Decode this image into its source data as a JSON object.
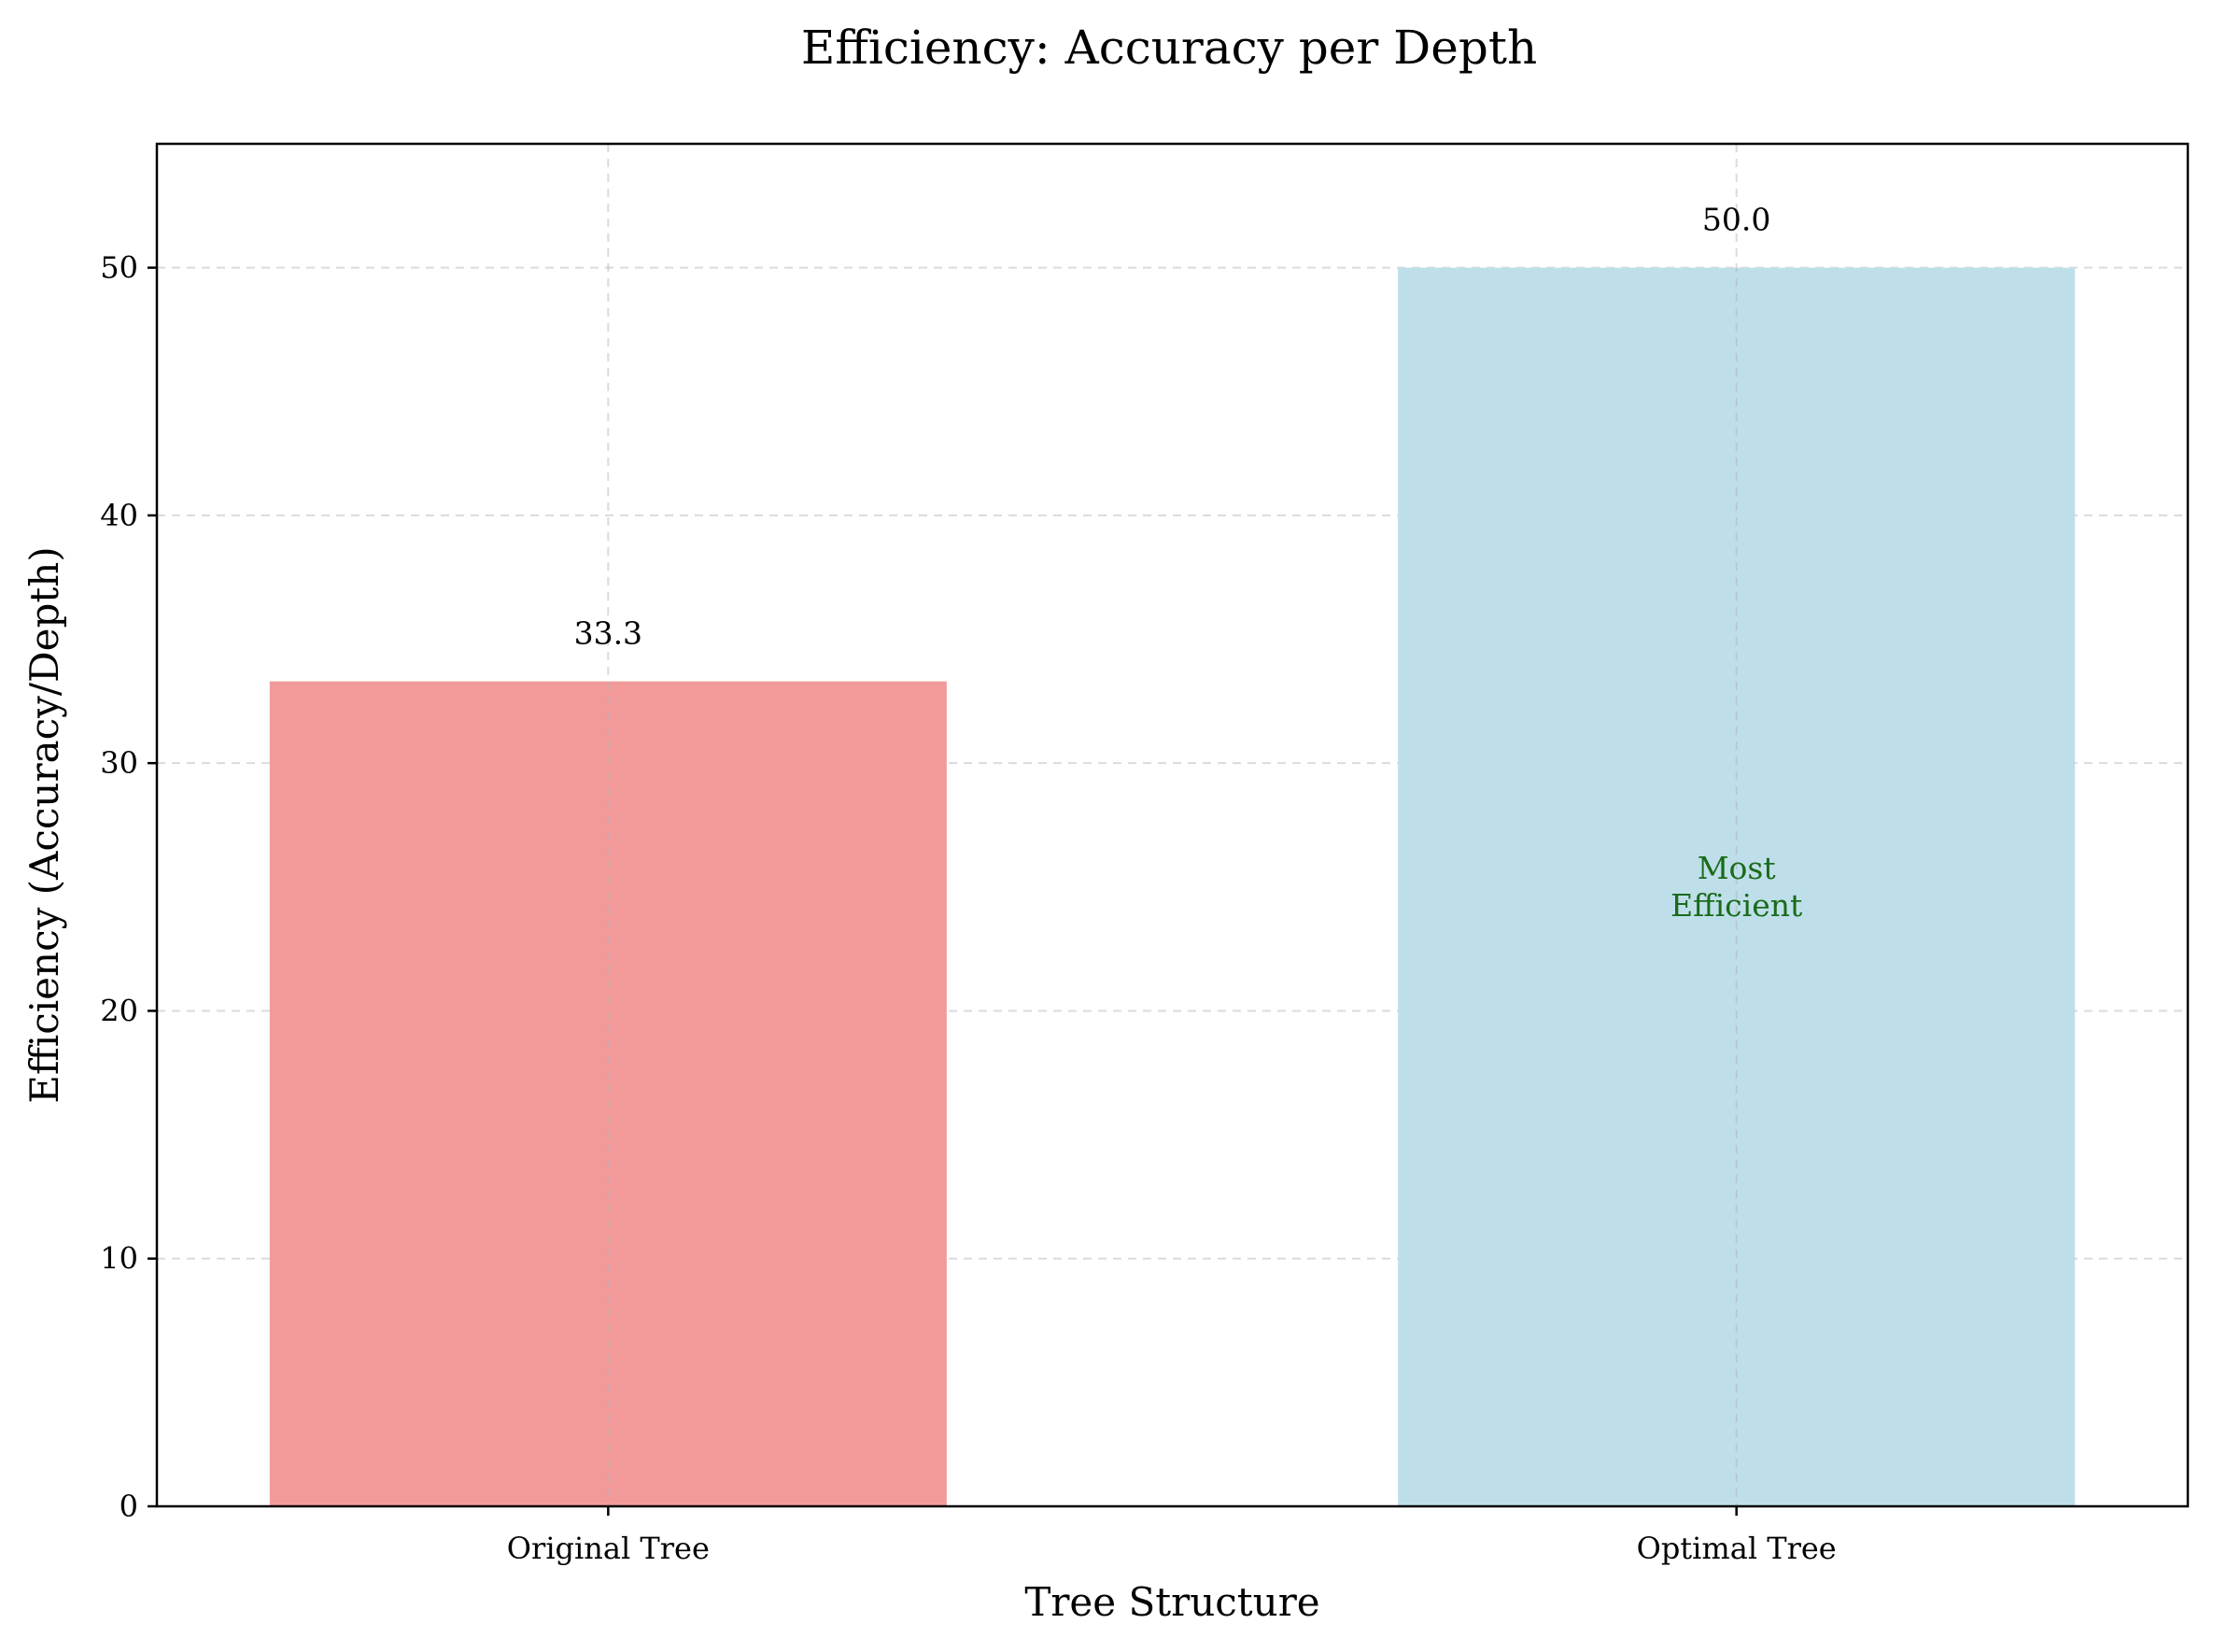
{
  "chart_data": {
    "type": "bar",
    "title": "Efficiency: Accuracy per Depth",
    "xlabel": "Tree Structure",
    "ylabel": "Efficiency (Accuracy/Depth)",
    "categories": [
      "Original Tree",
      "Optimal Tree"
    ],
    "values": [
      33.3,
      50.0
    ],
    "value_labels": [
      "33.3",
      "50.0"
    ],
    "colors": [
      "#f29a9a",
      "#bedfea"
    ],
    "ylim": [
      0,
      55
    ],
    "yticks": [
      0,
      10,
      20,
      30,
      40,
      50
    ],
    "grid": true,
    "annotation": {
      "category": "Optimal Tree",
      "lines": [
        "Most",
        "Efficient"
      ],
      "y": 25,
      "color": "#1a6b1a"
    }
  }
}
